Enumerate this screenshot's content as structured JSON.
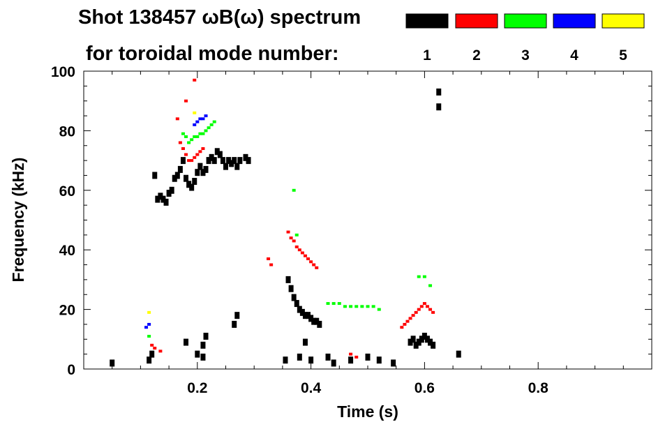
{
  "chart_data": {
    "type": "scatter",
    "title": "Shot 138457 ωB(ω) spectrum",
    "subtitle": "for toroidal mode number:",
    "xlabel": "Time (s)",
    "ylabel": "Frequency (kHz)",
    "xlim": [
      0.0,
      1.0
    ],
    "ylim": [
      0,
      100
    ],
    "x_ticks": [
      0.2,
      0.4,
      0.6,
      0.8
    ],
    "x_tick_labels": [
      "0.2",
      "0.4",
      "0.6",
      "0.8"
    ],
    "y_ticks": [
      0,
      20,
      40,
      60,
      80,
      100
    ],
    "y_tick_labels": [
      "0",
      "20",
      "40",
      "60",
      "80",
      "100"
    ],
    "legend": [
      {
        "label": "1",
        "color": "#000000"
      },
      {
        "label": "2",
        "color": "#ff0000"
      },
      {
        "label": "3",
        "color": "#00ff00"
      },
      {
        "label": "4",
        "color": "#0000ff"
      },
      {
        "label": "5",
        "color": "#ffff00"
      }
    ],
    "series": [
      {
        "name": "n=1",
        "color": "#000000",
        "points": [
          {
            "t": 0.05,
            "f": 2
          },
          {
            "t": 0.115,
            "f": 3
          },
          {
            "t": 0.12,
            "f": 5
          },
          {
            "t": 0.125,
            "f": 65
          },
          {
            "t": 0.13,
            "f": 57
          },
          {
            "t": 0.135,
            "f": 58
          },
          {
            "t": 0.14,
            "f": 57
          },
          {
            "t": 0.145,
            "f": 56
          },
          {
            "t": 0.15,
            "f": 59
          },
          {
            "t": 0.155,
            "f": 60
          },
          {
            "t": 0.16,
            "f": 64
          },
          {
            "t": 0.165,
            "f": 65
          },
          {
            "t": 0.17,
            "f": 67
          },
          {
            "t": 0.175,
            "f": 70
          },
          {
            "t": 0.18,
            "f": 64
          },
          {
            "t": 0.185,
            "f": 62
          },
          {
            "t": 0.19,
            "f": 61
          },
          {
            "t": 0.195,
            "f": 63
          },
          {
            "t": 0.2,
            "f": 66
          },
          {
            "t": 0.205,
            "f": 68
          },
          {
            "t": 0.21,
            "f": 66
          },
          {
            "t": 0.215,
            "f": 67
          },
          {
            "t": 0.22,
            "f": 70
          },
          {
            "t": 0.225,
            "f": 71
          },
          {
            "t": 0.23,
            "f": 70
          },
          {
            "t": 0.235,
            "f": 73
          },
          {
            "t": 0.24,
            "f": 72
          },
          {
            "t": 0.245,
            "f": 70
          },
          {
            "t": 0.25,
            "f": 68
          },
          {
            "t": 0.255,
            "f": 70
          },
          {
            "t": 0.26,
            "f": 69
          },
          {
            "t": 0.265,
            "f": 70
          },
          {
            "t": 0.27,
            "f": 68
          },
          {
            "t": 0.275,
            "f": 70
          },
          {
            "t": 0.285,
            "f": 71
          },
          {
            "t": 0.29,
            "f": 70
          },
          {
            "t": 0.18,
            "f": 9
          },
          {
            "t": 0.2,
            "f": 5
          },
          {
            "t": 0.21,
            "f": 8
          },
          {
            "t": 0.215,
            "f": 11
          },
          {
            "t": 0.21,
            "f": 4
          },
          {
            "t": 0.265,
            "f": 15
          },
          {
            "t": 0.27,
            "f": 18
          },
          {
            "t": 0.355,
            "f": 3
          },
          {
            "t": 0.36,
            "f": 30
          },
          {
            "t": 0.365,
            "f": 27
          },
          {
            "t": 0.37,
            "f": 24
          },
          {
            "t": 0.375,
            "f": 22
          },
          {
            "t": 0.38,
            "f": 20
          },
          {
            "t": 0.385,
            "f": 19
          },
          {
            "t": 0.39,
            "f": 18
          },
          {
            "t": 0.395,
            "f": 18
          },
          {
            "t": 0.4,
            "f": 17
          },
          {
            "t": 0.405,
            "f": 16
          },
          {
            "t": 0.41,
            "f": 16
          },
          {
            "t": 0.415,
            "f": 15
          },
          {
            "t": 0.38,
            "f": 4
          },
          {
            "t": 0.39,
            "f": 9
          },
          {
            "t": 0.4,
            "f": 3
          },
          {
            "t": 0.43,
            "f": 4
          },
          {
            "t": 0.44,
            "f": 2
          },
          {
            "t": 0.47,
            "f": 3
          },
          {
            "t": 0.5,
            "f": 4
          },
          {
            "t": 0.52,
            "f": 3
          },
          {
            "t": 0.545,
            "f": 2
          },
          {
            "t": 0.575,
            "f": 9
          },
          {
            "t": 0.58,
            "f": 10
          },
          {
            "t": 0.585,
            "f": 8
          },
          {
            "t": 0.59,
            "f": 9
          },
          {
            "t": 0.595,
            "f": 10
          },
          {
            "t": 0.6,
            "f": 11
          },
          {
            "t": 0.605,
            "f": 10
          },
          {
            "t": 0.61,
            "f": 9
          },
          {
            "t": 0.615,
            "f": 8
          },
          {
            "t": 0.625,
            "f": 93
          },
          {
            "t": 0.625,
            "f": 88
          },
          {
            "t": 0.66,
            "f": 5
          }
        ]
      },
      {
        "name": "n=2",
        "color": "#ff0000",
        "points": [
          {
            "t": 0.165,
            "f": 84
          },
          {
            "t": 0.17,
            "f": 76
          },
          {
            "t": 0.175,
            "f": 74
          },
          {
            "t": 0.18,
            "f": 72
          },
          {
            "t": 0.185,
            "f": 70
          },
          {
            "t": 0.19,
            "f": 70
          },
          {
            "t": 0.195,
            "f": 71
          },
          {
            "t": 0.2,
            "f": 72
          },
          {
            "t": 0.205,
            "f": 73
          },
          {
            "t": 0.21,
            "f": 74
          },
          {
            "t": 0.18,
            "f": 90
          },
          {
            "t": 0.195,
            "f": 97
          },
          {
            "t": 0.12,
            "f": 8
          },
          {
            "t": 0.125,
            "f": 7
          },
          {
            "t": 0.135,
            "f": 6
          },
          {
            "t": 0.325,
            "f": 37
          },
          {
            "t": 0.33,
            "f": 35
          },
          {
            "t": 0.36,
            "f": 46
          },
          {
            "t": 0.365,
            "f": 44
          },
          {
            "t": 0.37,
            "f": 43
          },
          {
            "t": 0.375,
            "f": 41
          },
          {
            "t": 0.38,
            "f": 40
          },
          {
            "t": 0.385,
            "f": 39
          },
          {
            "t": 0.39,
            "f": 38
          },
          {
            "t": 0.395,
            "f": 37
          },
          {
            "t": 0.4,
            "f": 36
          },
          {
            "t": 0.405,
            "f": 35
          },
          {
            "t": 0.41,
            "f": 34
          },
          {
            "t": 0.56,
            "f": 14
          },
          {
            "t": 0.565,
            "f": 15
          },
          {
            "t": 0.57,
            "f": 16
          },
          {
            "t": 0.575,
            "f": 17
          },
          {
            "t": 0.58,
            "f": 18
          },
          {
            "t": 0.585,
            "f": 19
          },
          {
            "t": 0.59,
            "f": 20
          },
          {
            "t": 0.595,
            "f": 21
          },
          {
            "t": 0.6,
            "f": 22
          },
          {
            "t": 0.605,
            "f": 21
          },
          {
            "t": 0.61,
            "f": 20
          },
          {
            "t": 0.615,
            "f": 19
          },
          {
            "t": 0.47,
            "f": 5
          },
          {
            "t": 0.48,
            "f": 4
          }
        ]
      },
      {
        "name": "n=3",
        "color": "#00ff00",
        "points": [
          {
            "t": 0.175,
            "f": 79
          },
          {
            "t": 0.18,
            "f": 78
          },
          {
            "t": 0.185,
            "f": 76
          },
          {
            "t": 0.19,
            "f": 77
          },
          {
            "t": 0.195,
            "f": 78
          },
          {
            "t": 0.2,
            "f": 78
          },
          {
            "t": 0.205,
            "f": 79
          },
          {
            "t": 0.21,
            "f": 79
          },
          {
            "t": 0.215,
            "f": 80
          },
          {
            "t": 0.22,
            "f": 81
          },
          {
            "t": 0.225,
            "f": 82
          },
          {
            "t": 0.23,
            "f": 83
          },
          {
            "t": 0.115,
            "f": 11
          },
          {
            "t": 0.37,
            "f": 60
          },
          {
            "t": 0.375,
            "f": 45
          },
          {
            "t": 0.43,
            "f": 22
          },
          {
            "t": 0.44,
            "f": 22
          },
          {
            "t": 0.45,
            "f": 22
          },
          {
            "t": 0.46,
            "f": 21
          },
          {
            "t": 0.47,
            "f": 21
          },
          {
            "t": 0.48,
            "f": 21
          },
          {
            "t": 0.49,
            "f": 21
          },
          {
            "t": 0.5,
            "f": 21
          },
          {
            "t": 0.51,
            "f": 21
          },
          {
            "t": 0.52,
            "f": 20
          },
          {
            "t": 0.59,
            "f": 31
          },
          {
            "t": 0.6,
            "f": 31
          },
          {
            "t": 0.61,
            "f": 28
          }
        ]
      },
      {
        "name": "n=4",
        "color": "#0000ff",
        "points": [
          {
            "t": 0.195,
            "f": 82
          },
          {
            "t": 0.2,
            "f": 83
          },
          {
            "t": 0.205,
            "f": 84
          },
          {
            "t": 0.21,
            "f": 84
          },
          {
            "t": 0.215,
            "f": 85
          },
          {
            "t": 0.11,
            "f": 14
          },
          {
            "t": 0.115,
            "f": 15
          }
        ]
      },
      {
        "name": "n=5",
        "color": "#ffff00",
        "points": [
          {
            "t": 0.195,
            "f": 86
          },
          {
            "t": 0.115,
            "f": 19
          }
        ]
      }
    ]
  }
}
